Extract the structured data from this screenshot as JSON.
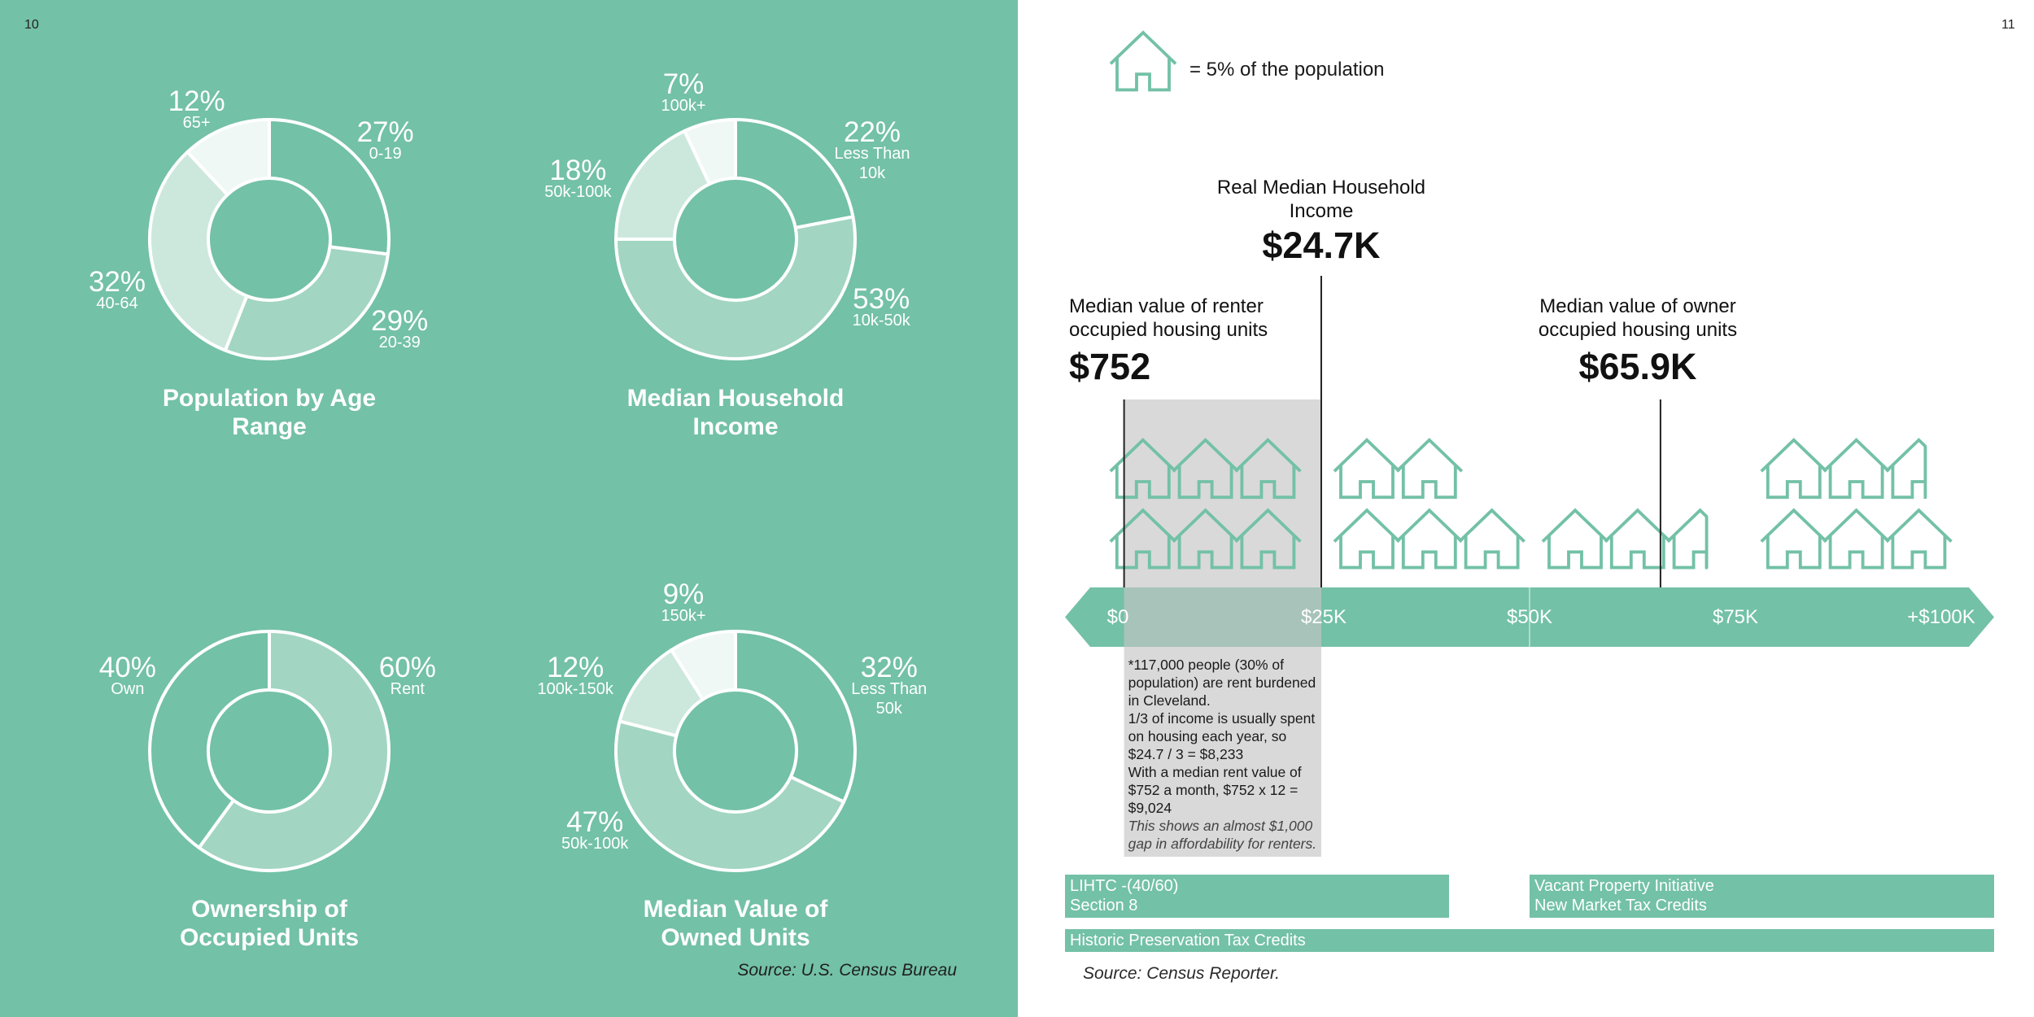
{
  "page_numbers": [
    "10",
    "11"
  ],
  "chart_data": [
    {
      "type": "pie",
      "title": "Population by Age Range",
      "categories": [
        "0-19",
        "20-39",
        "40-64",
        "65+"
      ],
      "values": [
        27,
        29,
        32,
        12
      ],
      "value_labels": [
        "27%",
        "29%",
        "32%",
        "12%"
      ],
      "colors": [
        "#73c1a7",
        "#a2d5c2",
        "#cce8dc",
        "#eff8f4"
      ]
    },
    {
      "type": "pie",
      "title": "Median Household Income",
      "categories": [
        "Less Than 10k",
        "10k-50k",
        "50k-100k",
        "100k+"
      ],
      "values": [
        22,
        53,
        18,
        7
      ],
      "value_labels": [
        "22%",
        "53%",
        "18%",
        "7%"
      ],
      "colors": [
        "#73c1a7",
        "#a2d5c2",
        "#cce8dc",
        "#eff8f4"
      ]
    },
    {
      "type": "pie",
      "title": "Ownership of Occupied Units",
      "categories": [
        "Rent",
        "Own"
      ],
      "values": [
        60,
        40
      ],
      "value_labels": [
        "60%",
        "40%"
      ],
      "colors": [
        "#a2d5c2",
        "#73c1a7"
      ]
    },
    {
      "type": "pie",
      "title": "Median Value of Owned Units",
      "categories": [
        "Less Than 50k",
        "50k-100k",
        "100k-150k",
        "150k+"
      ],
      "values": [
        32,
        47,
        12,
        9
      ],
      "value_labels": [
        "32%",
        "47%",
        "12%",
        "9%"
      ],
      "colors": [
        "#73c1a7",
        "#a2d5c2",
        "#cce8dc",
        "#eff8f4"
      ]
    },
    {
      "type": "number-line",
      "color": "#73c1a7",
      "xlim": [
        0,
        100000
      ],
      "xticks": [
        {
          "value": 0,
          "label": "$0"
        },
        {
          "value": 25000,
          "label": "$25K"
        },
        {
          "value": 50000,
          "label": "$50K"
        },
        {
          "value": 75000,
          "label": "$75K"
        },
        {
          "value": 100000,
          "label": "+$100K"
        }
      ],
      "annotations": [
        {
          "label": "Median value of renter occupied housing units",
          "value": 752,
          "value_label": "$752"
        },
        {
          "label": "Real Median Household Income",
          "value": 24700,
          "value_label": "$24.7K"
        },
        {
          "label": "Median value of owner occupied housing units",
          "value": 65900,
          "value_label": "$65.9K"
        }
      ],
      "note": [
        "*117,000 people (30% of population) are rent burdened in Cleveland.",
        "1/3 of income is usually spent on housing each year, so $24.7 / 3 = $8,233",
        "With a median rent value of $752 a month, $752 x 12 = $9,024",
        "This shows an almost $1,000 gap in affordability for renters."
      ]
    }
  ],
  "left_source": "Source: U.S. Census Bureau",
  "legend": "= 5% of the population",
  "programs": [
    [
      "LIHTC -(40/60)",
      "Section 8"
    ],
    [
      "Vacant Property Initiative",
      "New Market Tax Credits"
    ],
    [
      "Historic Preservation Tax Credits"
    ]
  ],
  "right_source": "Source: Census Reporter."
}
